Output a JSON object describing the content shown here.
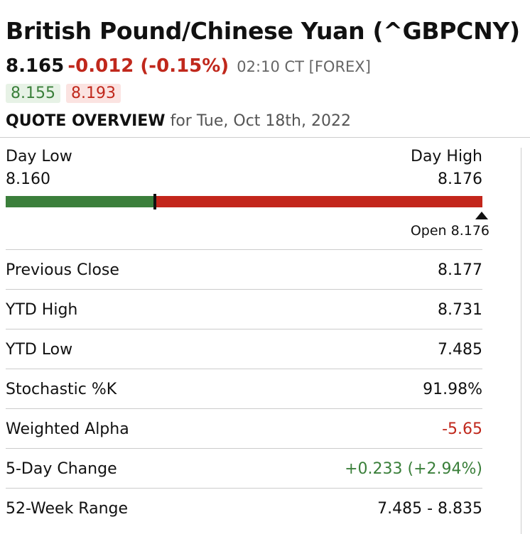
{
  "header": {
    "title": "British Pound/Chinese Yuan (^GBPCNY)",
    "last": "8.165",
    "change": "-0.012 (-0.15%)",
    "time": "02:10 CT [FOREX]",
    "bid": "8.155",
    "ask": "8.193"
  },
  "overview": {
    "label": "QUOTE OVERVIEW",
    "date": "for Tue, Oct 18th, 2022"
  },
  "day_range": {
    "low_label": "Day Low",
    "low_value": "8.160",
    "high_label": "Day High",
    "high_value": "8.176",
    "low": 8.16,
    "high": 8.176,
    "last": 8.165,
    "open_text": "Open 8.176",
    "colors": {
      "low": "#3b7f3b",
      "high": "#c3261b"
    }
  },
  "stats": [
    {
      "label": "Previous Close",
      "value": "8.177",
      "tone": "neutral"
    },
    {
      "label": "YTD High",
      "value": "8.731",
      "tone": "neutral"
    },
    {
      "label": "YTD Low",
      "value": "7.485",
      "tone": "neutral"
    },
    {
      "label": "Stochastic %K",
      "value": "91.98%",
      "tone": "neutral"
    },
    {
      "label": "Weighted Alpha",
      "value": "-5.65",
      "tone": "negative"
    },
    {
      "label": "5-Day Change",
      "value": "+0.233 (+2.94%)",
      "tone": "positive"
    },
    {
      "label": "52-Week Range",
      "value": "7.485 - 8.835",
      "tone": "neutral"
    }
  ]
}
